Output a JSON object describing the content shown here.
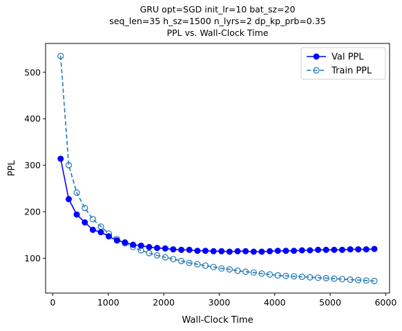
{
  "chart_data": {
    "type": "line",
    "title_lines": [
      "GRU opt=SGD init_lr=10 bat_sz=20",
      "seq_len=35 h_sz=1500 n_lyrs=2 dp_kp_prb=0.35",
      "PPL vs. Wall-Clock Time"
    ],
    "xlabel": "Wall-Clock Time",
    "ylabel": "PPL",
    "xlim": [
      -130,
      6070
    ],
    "ylim": [
      25,
      562
    ],
    "xticks": [
      0,
      1000,
      2000,
      3000,
      4000,
      5000,
      6000
    ],
    "yticks": [
      100,
      200,
      300,
      400,
      500
    ],
    "grid": false,
    "legend_position": "top-right",
    "series": [
      {
        "name": "Val PPL",
        "color": "#0000ff",
        "line_style": "solid",
        "marker": "filled-circle",
        "x": [
          142,
          287,
          432,
          577,
          722,
          866,
          1011,
          1156,
          1301,
          1446,
          1591,
          1736,
          1881,
          2026,
          2171,
          2316,
          2461,
          2606,
          2751,
          2896,
          3041,
          3186,
          3331,
          3476,
          3621,
          3766,
          3911,
          4056,
          4201,
          4346,
          4491,
          4636,
          4781,
          4926,
          5071,
          5216,
          5361,
          5506,
          5651,
          5796
        ],
        "y": [
          314,
          227,
          194,
          177,
          161,
          156,
          147,
          138,
          134,
          129,
          127,
          124,
          122,
          121,
          119,
          118,
          118,
          116,
          116,
          115,
          115,
          114,
          115,
          115,
          114,
          114,
          115,
          116,
          116,
          116,
          117,
          117,
          118,
          118,
          118,
          118,
          119,
          119,
          119,
          120
        ]
      },
      {
        "name": "Train PPL",
        "color": "#1f77b4",
        "line_style": "dashed",
        "marker": "open-circle",
        "x": [
          142,
          287,
          432,
          577,
          722,
          866,
          1011,
          1156,
          1301,
          1446,
          1591,
          1736,
          1881,
          2026,
          2171,
          2316,
          2461,
          2606,
          2751,
          2896,
          3041,
          3186,
          3331,
          3476,
          3621,
          3766,
          3911,
          4056,
          4201,
          4346,
          4491,
          4636,
          4781,
          4926,
          5071,
          5216,
          5361,
          5506,
          5651,
          5796
        ],
        "y": [
          535,
          300,
          241,
          208,
          184,
          168,
          153,
          141,
          132,
          124,
          117,
          111,
          106,
          102,
          98,
          94,
          90,
          87,
          84,
          81,
          78,
          76,
          73,
          71,
          69,
          67,
          65,
          63,
          62,
          61,
          60,
          59,
          58,
          57,
          56,
          55,
          54,
          53,
          52,
          51
        ]
      }
    ]
  }
}
